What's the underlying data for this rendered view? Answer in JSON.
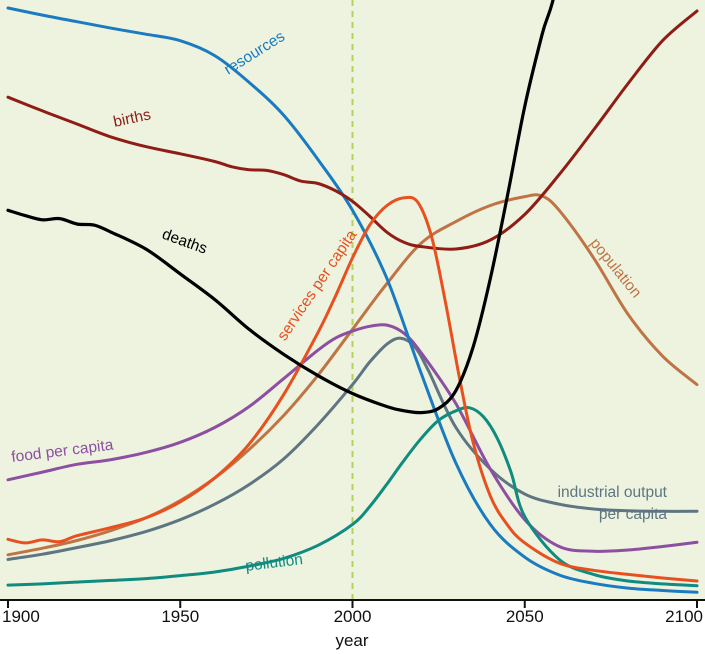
{
  "chart_data": {
    "type": "line",
    "title": "",
    "xlabel": "year",
    "xlim": [
      1900,
      2100
    ],
    "ylim": [
      0,
      1
    ],
    "x_ticks": [
      "1900",
      "1950",
      "2000",
      "2050",
      "2100"
    ],
    "x_tick_years": [
      1900,
      1950,
      2000,
      2050,
      2100
    ],
    "y_ticks": [],
    "units": "normalized (0-1), no numeric y-axis shown",
    "background": "#edf3df",
    "axis_color": "#111111",
    "event_line": {
      "year": 2000,
      "color": "#b4d25e",
      "style": "dashed"
    },
    "curve_labels": {
      "industrial_line1": "industrial output",
      "industrial_line2": "per capita"
    },
    "series": [
      {
        "name": "resources",
        "color": "#1a7bc0",
        "z": 4,
        "width": 3,
        "x": [
          1900,
          1910,
          1920,
          1930,
          1940,
          1950,
          1960,
          1970,
          1980,
          1990,
          2000,
          2010,
          2020,
          2030,
          2040,
          2050,
          2060,
          2070,
          2080,
          2090,
          2100
        ],
        "values": [
          0.995,
          0.983,
          0.972,
          0.961,
          0.951,
          0.94,
          0.915,
          0.87,
          0.815,
          0.74,
          0.655,
          0.54,
          0.38,
          0.23,
          0.127,
          0.072,
          0.042,
          0.028,
          0.02,
          0.016,
          0.013
        ]
      },
      {
        "name": "births",
        "color": "#8f1d15",
        "z": 6,
        "width": 3,
        "x": [
          1900,
          1910,
          1920,
          1930,
          1940,
          1950,
          1960,
          1965,
          1970,
          1975,
          1980,
          1985,
          1990,
          1995,
          2000,
          2005,
          2010,
          2015,
          2020,
          2030,
          2040,
          2050,
          2060,
          2070,
          2080,
          2090,
          2100
        ],
        "values": [
          0.845,
          0.822,
          0.8,
          0.778,
          0.762,
          0.75,
          0.737,
          0.728,
          0.723,
          0.722,
          0.715,
          0.704,
          0.7,
          0.688,
          0.67,
          0.645,
          0.618,
          0.601,
          0.594,
          0.59,
          0.605,
          0.648,
          0.715,
          0.79,
          0.868,
          0.94,
          0.99
        ]
      },
      {
        "name": "deaths",
        "color": "#000000",
        "z": 8,
        "width": 3.2,
        "x": [
          1900,
          1905,
          1910,
          1915,
          1920,
          1925,
          1930,
          1940,
          1950,
          1960,
          1970,
          1980,
          1990,
          2000,
          2010,
          2015,
          2020,
          2025,
          2030,
          2035,
          2040,
          2045,
          2050,
          2055,
          2060,
          2070,
          2100
        ],
        "values": [
          0.655,
          0.646,
          0.639,
          0.641,
          0.632,
          0.63,
          0.618,
          0.59,
          0.548,
          0.505,
          0.455,
          0.413,
          0.377,
          0.347,
          0.325,
          0.318,
          0.315,
          0.322,
          0.352,
          0.425,
          0.54,
          0.68,
          0.83,
          0.95,
          1.06,
          1.45,
          2.3
        ]
      },
      {
        "name": "services per capita",
        "color": "#e8501f",
        "z": 7,
        "width": 3,
        "x": [
          1900,
          1905,
          1910,
          1915,
          1920,
          1930,
          1940,
          1950,
          1960,
          1970,
          1980,
          1990,
          1995,
          2000,
          2005,
          2010,
          2015,
          2019,
          2023,
          2027,
          2031,
          2035,
          2040,
          2045,
          2050,
          2060,
          2070,
          2080,
          2090,
          2100
        ],
        "values": [
          0.102,
          0.096,
          0.101,
          0.098,
          0.108,
          0.122,
          0.138,
          0.165,
          0.205,
          0.262,
          0.345,
          0.45,
          0.51,
          0.575,
          0.63,
          0.663,
          0.676,
          0.668,
          0.61,
          0.5,
          0.375,
          0.265,
          0.175,
          0.126,
          0.096,
          0.062,
          0.05,
          0.043,
          0.037,
          0.032
        ]
      },
      {
        "name": "population",
        "color": "#bf7446",
        "z": 2,
        "width": 3,
        "x": [
          1900,
          1910,
          1920,
          1930,
          1940,
          1950,
          1960,
          1970,
          1980,
          1990,
          2000,
          2010,
          2020,
          2030,
          2040,
          2050,
          2055,
          2060,
          2070,
          2080,
          2090,
          2100
        ],
        "values": [
          0.076,
          0.087,
          0.1,
          0.117,
          0.138,
          0.167,
          0.205,
          0.253,
          0.31,
          0.378,
          0.455,
          0.532,
          0.6,
          0.636,
          0.663,
          0.678,
          0.679,
          0.655,
          0.575,
          0.48,
          0.41,
          0.362
        ]
      },
      {
        "name": "food per capita",
        "color": "#8d4fa1",
        "z": 3,
        "width": 3,
        "x": [
          1900,
          1910,
          1920,
          1930,
          1940,
          1950,
          1960,
          1970,
          1980,
          1990,
          1995,
          2000,
          2005,
          2010,
          2015,
          2020,
          2030,
          2040,
          2050,
          2060,
          2070,
          2080,
          2090,
          2100
        ],
        "values": [
          0.202,
          0.215,
          0.228,
          0.236,
          0.248,
          0.265,
          0.29,
          0.325,
          0.372,
          0.42,
          0.44,
          0.452,
          0.46,
          0.462,
          0.448,
          0.415,
          0.33,
          0.22,
          0.135,
          0.09,
          0.082,
          0.084,
          0.09,
          0.097
        ]
      },
      {
        "name": "industrial output per capita",
        "color": "#5e7582",
        "z": 1,
        "width": 3,
        "x": [
          1900,
          1910,
          1920,
          1930,
          1940,
          1950,
          1960,
          1970,
          1980,
          1990,
          2000,
          2005,
          2010,
          2014,
          2018,
          2022,
          2030,
          2040,
          2050,
          2060,
          2070,
          2080,
          2090,
          2100
        ],
        "values": [
          0.068,
          0.077,
          0.088,
          0.1,
          0.115,
          0.135,
          0.161,
          0.194,
          0.237,
          0.295,
          0.362,
          0.4,
          0.43,
          0.44,
          0.426,
          0.386,
          0.29,
          0.22,
          0.178,
          0.161,
          0.153,
          0.15,
          0.149,
          0.149
        ]
      },
      {
        "name": "pollution",
        "color": "#0f8b7f",
        "z": 5,
        "width": 3,
        "x": [
          1900,
          1910,
          1920,
          1930,
          1940,
          1950,
          1960,
          1970,
          1980,
          1990,
          2000,
          2005,
          2010,
          2015,
          2020,
          2025,
          2030,
          2034,
          2038,
          2042,
          2046,
          2050,
          2060,
          2070,
          2080,
          2090,
          2100
        ],
        "values": [
          0.025,
          0.027,
          0.03,
          0.033,
          0.036,
          0.041,
          0.047,
          0.057,
          0.07,
          0.092,
          0.127,
          0.157,
          0.195,
          0.235,
          0.272,
          0.302,
          0.318,
          0.323,
          0.308,
          0.272,
          0.215,
          0.14,
          0.068,
          0.043,
          0.032,
          0.027,
          0.024
        ]
      }
    ]
  }
}
